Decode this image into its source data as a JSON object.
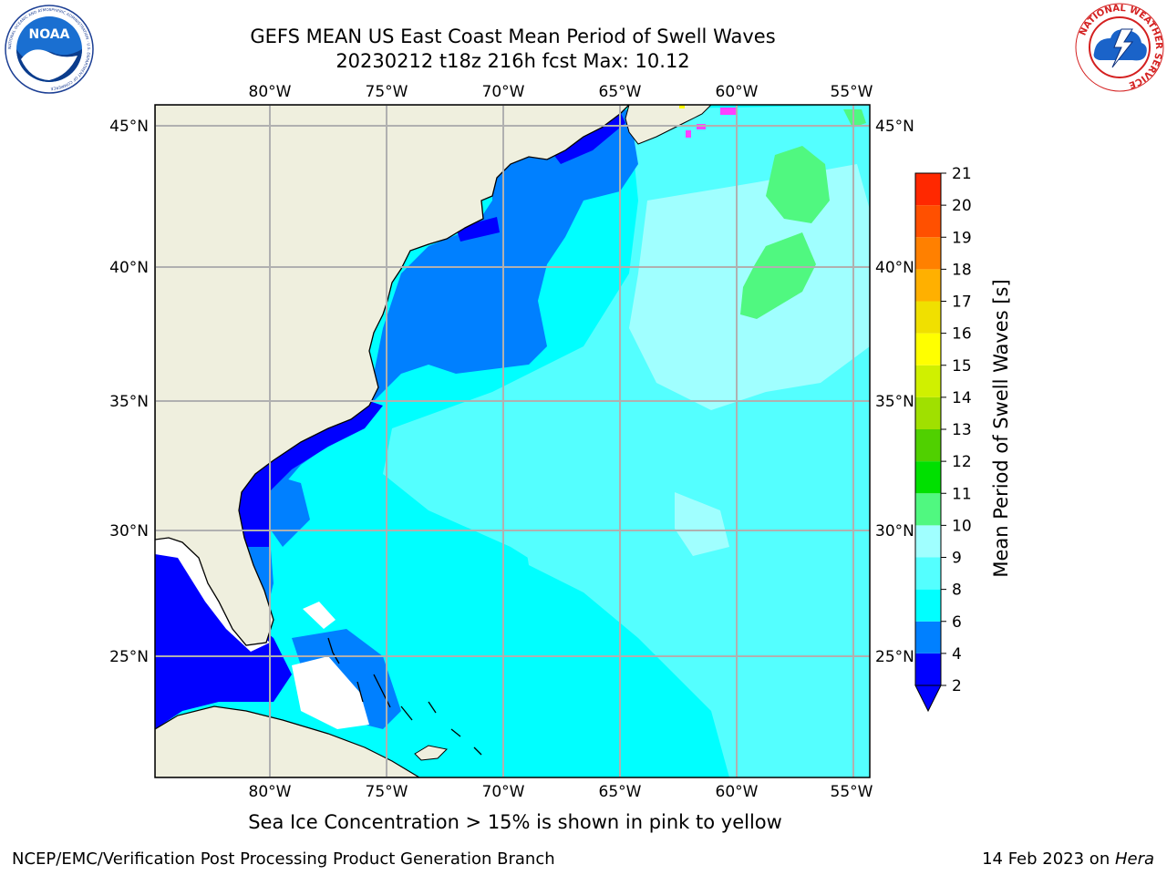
{
  "header": {
    "title_line1": "GEFS MEAN US East Coast Mean Period of Swell Waves",
    "title_line2": "20230212 t18z 216h fcst   Max: 10.12"
  },
  "logos": {
    "left": {
      "name": "NOAA",
      "ring_text": "NATIONAL OCEANIC AND ATMOSPHERIC ADMINISTRATION · U.S. DEPARTMENT OF COMMERCE"
    },
    "right": {
      "ring_text": "NATIONAL WEATHER SERVICE"
    }
  },
  "map": {
    "lon_labels": [
      "80°W",
      "75°W",
      "70°W",
      "65°W",
      "60°W",
      "55°W"
    ],
    "lat_labels": [
      "45°N",
      "40°N",
      "35°N",
      "30°N",
      "25°N"
    ],
    "colors": {
      "land": "#efefde",
      "ocean_main": "#00ffff",
      "ocean_light": "#54ffff",
      "ocean_lighter": "#a0ffff",
      "ocean_green": "#50f880",
      "coastal_blue": "#0080ff",
      "deep_blue": "#0000ff",
      "sea_ice": "#ff40ff",
      "gridline": "#b0b0b0",
      "coastline": "#000000"
    }
  },
  "colorbar": {
    "label": "Mean Period of Swell Waves [s]",
    "ticks": [
      "2",
      "4",
      "6",
      "8",
      "9",
      "10",
      "11",
      "12",
      "13",
      "14",
      "15",
      "16",
      "17",
      "18",
      "19",
      "20",
      "21"
    ],
    "colors": [
      "#0000ff",
      "#0080ff",
      "#00ffff",
      "#54ffff",
      "#a0ffff",
      "#50f880",
      "#00e000",
      "#50d000",
      "#a0e000",
      "#d0f000",
      "#ffff00",
      "#f0e000",
      "#ffb000",
      "#ff8000",
      "#ff5000",
      "#ff2800",
      "#ff0000"
    ],
    "under_color": "#0000ff"
  },
  "caption": "Sea Ice Concentration > 15% is shown in pink to yellow",
  "footer": {
    "left": "NCEP/EMC/Verification Post Processing Product Generation Branch",
    "right_date": "14 Feb 2023 on ",
    "right_host": "Hera"
  }
}
